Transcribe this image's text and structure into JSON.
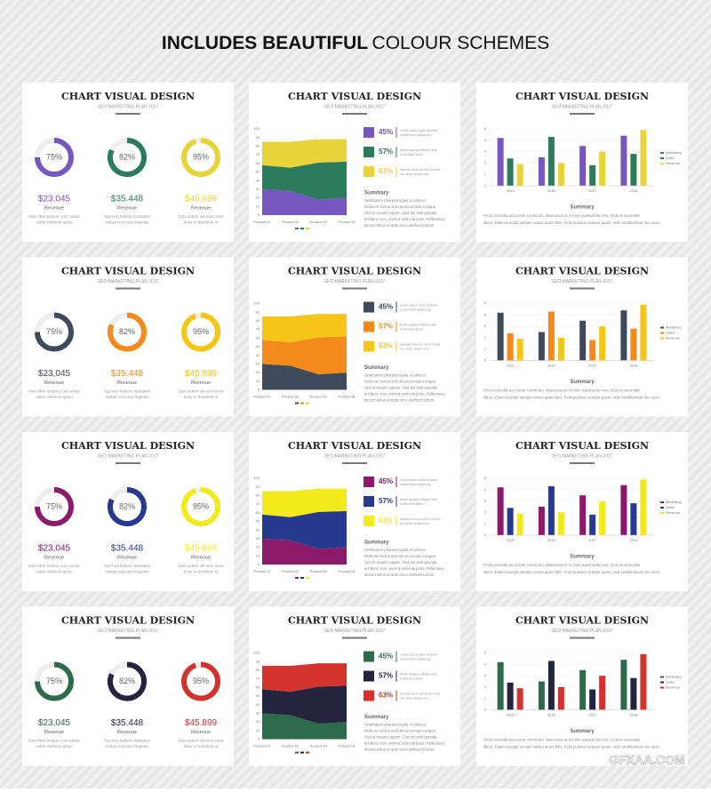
{
  "header": {
    "bold": "INCLUDES BEAUTIFUL",
    "light": "COLOUR SCHEMES"
  },
  "slide": {
    "title": "CHART VISUAL DESIGN",
    "subtitle": "SEO MARKETING PLAN 2017",
    "summary": "Summary",
    "summary_text": [
      "Vestibulum pharetra ligula in ultrices.",
      "Nulla vel lectus sed dui accumsan congue.",
      "Sed et mauris sapien. Sed dui velit gravida",
      "ed libero non, viverra vehicula justo. Pellentesq",
      "dictum tellus et ante accu eleifend rutrum."
    ],
    "bar_text": [
      "Proin convallis accu ante commodo. Maecenas ut in enim egestas leo nec, Duis at venenatis",
      "libero. Etiam suscipit semper varius quam felis. Felis pulvinar semper quam, velit condimentum leo nunc."
    ]
  },
  "schemes": [
    {
      "colors": [
        "#7656bf",
        "#2b7b5c",
        "#e6d43a"
      ]
    },
    {
      "colors": [
        "#3f4b5b",
        "#f4891c",
        "#f7c517"
      ]
    },
    {
      "colors": [
        "#8c1a6b",
        "#283a8e",
        "#f3ea1e"
      ]
    },
    {
      "colors": [
        "#2d6b4b",
        "#25243f",
        "#d2332d"
      ]
    }
  ],
  "watermark": "GFXAA.COM",
  "chart_data": [
    {
      "type": "donut",
      "values": [
        75,
        82,
        95
      ],
      "value_labels": [
        "75%",
        "82%",
        "95%"
      ],
      "amounts": [
        "$23,045",
        "$35.448",
        "$45.899"
      ],
      "captions": [
        "Revenue",
        "Revenue",
        "Revenue"
      ],
      "notes": [
        [
          "Nam liber tempor cum soluta",
          "nobis eleifend option"
        ],
        [
          "Typi non habent claritatem",
          "insitam est usus legentis"
        ],
        [
          "Duis autem vel eum iriure",
          "dolor in hendrerit in"
        ]
      ]
    },
    {
      "type": "area",
      "categories": [
        "Product 01",
        "Product 02",
        "Product 03",
        "Product 04"
      ],
      "series": [
        {
          "values": [
            30,
            28,
            18,
            20
          ]
        },
        {
          "values": [
            28,
            27,
            43,
            42
          ]
        },
        {
          "values": [
            27,
            30,
            27,
            26
          ]
        }
      ],
      "ylim": [
        0,
        100
      ],
      "yticks": [
        0,
        10,
        20,
        30,
        40,
        50,
        60,
        70,
        80,
        90,
        100
      ],
      "stats": [
        {
          "value": 45,
          "label": "45%",
          "text": [
            "Lorem ipsum dolor sit amet",
            "consectetur adipiscing"
          ]
        },
        {
          "value": 57,
          "label": "57%",
          "text": [
            "Morbi dapibus efficitur felis",
            "in tincidunt tortor"
          ]
        },
        {
          "value": 63,
          "label": "63%",
          "text": [
            "Aenean rhoncus nisi in mollis",
            "nec vitae ornare eros"
          ]
        }
      ]
    },
    {
      "type": "bar",
      "categories": [
        "2015",
        "2016",
        "2017",
        "2018"
      ],
      "series": [
        {
          "name": "Marketing",
          "values": [
            4.2,
            2.5,
            3.5,
            4.4
          ]
        },
        {
          "name": "Sales",
          "values": [
            2.4,
            4.3,
            1.8,
            2.8
          ]
        },
        {
          "name": "Revenue",
          "values": [
            1.9,
            2,
            3,
            4.9
          ]
        }
      ],
      "ylim": [
        0,
        5
      ],
      "yticks": [
        0,
        1,
        2,
        3,
        4,
        5
      ]
    }
  ]
}
